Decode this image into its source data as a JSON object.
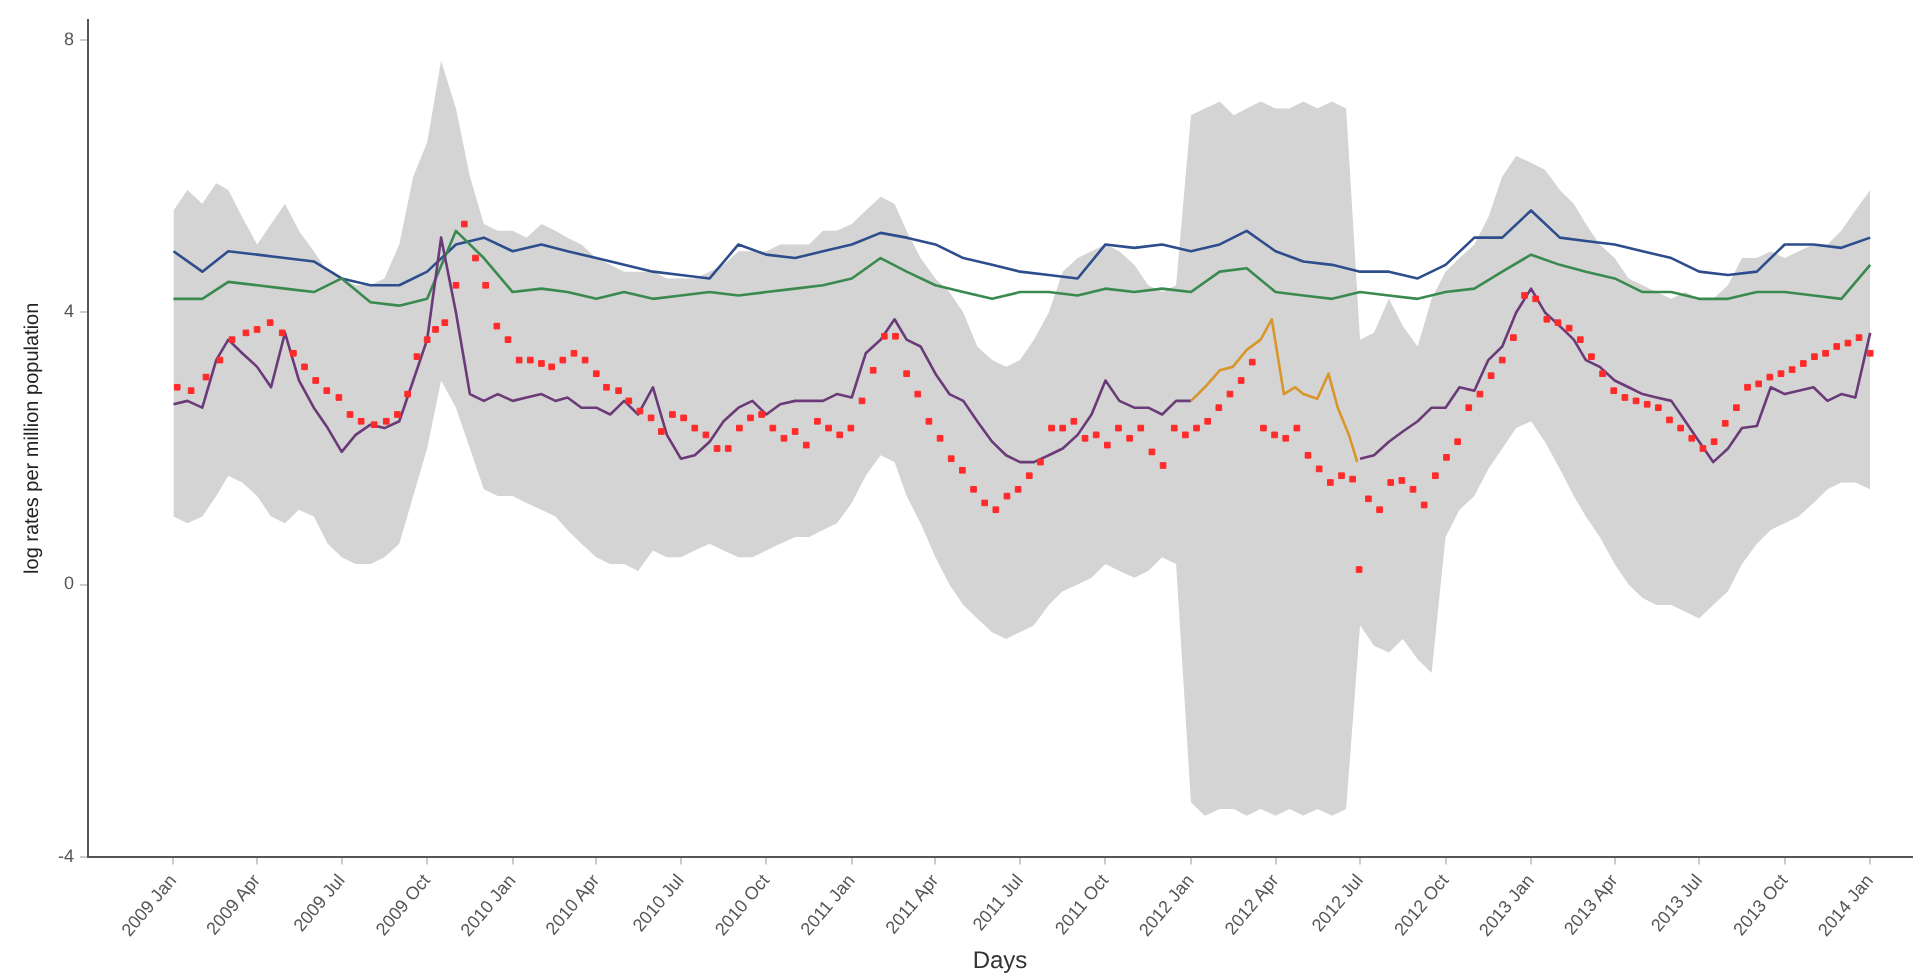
{
  "chart_data": {
    "type": "line",
    "xlabel": "Days",
    "ylabel": "log rates per million population",
    "xlim": [
      "2008-10-01",
      "2014-02-15"
    ],
    "ylim": [
      -4,
      8.3
    ],
    "xticks": [
      {
        "value": "2009-01",
        "label": "2009 Jan"
      },
      {
        "value": "2009-04",
        "label": "2009 Apr"
      },
      {
        "value": "2009-07",
        "label": "2009 Jul"
      },
      {
        "value": "2009-10",
        "label": "2009 Oct"
      },
      {
        "value": "2010-01",
        "label": "2010 Jan"
      },
      {
        "value": "2010-04",
        "label": "2010 Apr"
      },
      {
        "value": "2010-07",
        "label": "2010 Jul"
      },
      {
        "value": "2010-10",
        "label": "2010 Oct"
      },
      {
        "value": "2011-01",
        "label": "2011 Jan"
      },
      {
        "value": "2011-04",
        "label": "2011 Apr"
      },
      {
        "value": "2011-07",
        "label": "2011 Jul"
      },
      {
        "value": "2011-10",
        "label": "2011 Oct"
      },
      {
        "value": "2012-01",
        "label": "2012 Jan"
      },
      {
        "value": "2012-04",
        "label": "2012 Apr"
      },
      {
        "value": "2012-07",
        "label": "2012 Jul"
      },
      {
        "value": "2012-10",
        "label": "2012 Oct"
      },
      {
        "value": "2013-01",
        "label": "2013 Jan"
      },
      {
        "value": "2013-04",
        "label": "2013 Apr"
      },
      {
        "value": "2013-07",
        "label": "2013 Jul"
      },
      {
        "value": "2013-10",
        "label": "2013 Oct"
      },
      {
        "value": "2014-01",
        "label": "2014 Jan"
      }
    ],
    "yticks": [
      -4,
      0,
      4,
      8
    ],
    "grid": false,
    "x": [
      "2009-01",
      "2009-02",
      "2009-03",
      "2009-04",
      "2009-05",
      "2009-06",
      "2009-07",
      "2009-08",
      "2009-09",
      "2009-10",
      "2009-11",
      "2009-12",
      "2010-01",
      "2010-02",
      "2010-03",
      "2010-04",
      "2010-05",
      "2010-06",
      "2010-07",
      "2010-08",
      "2010-09",
      "2010-10",
      "2010-11",
      "2010-12",
      "2011-01",
      "2011-02",
      "2011-03",
      "2011-04",
      "2011-05",
      "2011-06",
      "2011-07",
      "2011-08",
      "2011-09",
      "2011-10",
      "2011-11",
      "2011-12",
      "2012-01",
      "2012-02",
      "2012-03",
      "2012-04",
      "2012-05",
      "2012-06",
      "2012-07",
      "2012-08",
      "2012-09",
      "2012-10",
      "2012-11",
      "2012-12",
      "2013-01",
      "2013-02",
      "2013-03",
      "2013-04",
      "2013-05",
      "2013-06",
      "2013-07",
      "2013-08",
      "2013-09",
      "2013-10",
      "2013-11",
      "2013-12",
      "2014-01"
    ],
    "series": [
      {
        "color": "#2e4d8c",
        "values": [
          4.9,
          4.6,
          4.9,
          4.85,
          4.8,
          4.75,
          4.5,
          4.4,
          4.4,
          4.6,
          5.0,
          5.1,
          4.9,
          5.0,
          4.9,
          4.8,
          4.7,
          4.6,
          4.55,
          4.5,
          5.0,
          4.85,
          4.8,
          4.9,
          5.0,
          5.17,
          5.1,
          5.0,
          4.8,
          4.7,
          4.6,
          4.55,
          4.5,
          5.0,
          4.95,
          5.0,
          4.9,
          5.0,
          5.2,
          4.9,
          4.75,
          4.7,
          4.6,
          4.6,
          4.5,
          4.7,
          5.1,
          5.1,
          5.5,
          5.1,
          5.05,
          5.0,
          4.9,
          4.8,
          4.6,
          4.55,
          4.6,
          5.0,
          5.0,
          4.95,
          5.1
        ]
      },
      {
        "color": "#3a8a50",
        "values": [
          4.2,
          4.2,
          4.45,
          4.4,
          4.35,
          4.3,
          4.5,
          4.15,
          4.1,
          4.2,
          5.2,
          4.8,
          4.3,
          4.35,
          4.3,
          4.2,
          4.3,
          4.2,
          4.25,
          4.3,
          4.25,
          4.3,
          4.35,
          4.4,
          4.5,
          4.8,
          4.6,
          4.4,
          4.3,
          4.2,
          4.3,
          4.3,
          4.25,
          4.35,
          4.3,
          4.35,
          4.3,
          4.6,
          4.65,
          4.3,
          4.25,
          4.2,
          4.3,
          4.25,
          4.2,
          4.3,
          4.35,
          4.6,
          4.85,
          4.7,
          4.6,
          4.5,
          4.3,
          4.3,
          4.2,
          4.2,
          4.3,
          4.3,
          4.25,
          4.2,
          4.7
        ]
      },
      {
        "color": "#6b3a78",
        "x": [
          "2009-01-01",
          "2009-01-16",
          "2009-02-01",
          "2009-02-16",
          "2009-03-01",
          "2009-03-16",
          "2009-04-01",
          "2009-04-16",
          "2009-05-01",
          "2009-05-16",
          "2009-06-01",
          "2009-06-16",
          "2009-07-01",
          "2009-07-16",
          "2009-08-01",
          "2009-08-16",
          "2009-09-01",
          "2009-09-16",
          "2009-10-01",
          "2009-10-16",
          "2009-11-01",
          "2009-11-16",
          "2009-12-01",
          "2009-12-16",
          "2010-01-01",
          "2010-01-16",
          "2010-02-01",
          "2010-02-16",
          "2010-03-01",
          "2010-03-16",
          "2010-04-01",
          "2010-04-16",
          "2010-05-01",
          "2010-05-16",
          "2010-06-01",
          "2010-06-16",
          "2010-07-01",
          "2010-07-16",
          "2010-08-01",
          "2010-08-16",
          "2010-09-01",
          "2010-09-16",
          "2010-10-01",
          "2010-10-16",
          "2010-11-01",
          "2010-11-16",
          "2010-12-01",
          "2010-12-16",
          "2011-01-01",
          "2011-01-16",
          "2011-02-01",
          "2011-02-16",
          "2011-03-01",
          "2011-03-16",
          "2011-04-01",
          "2011-04-16",
          "2011-05-01",
          "2011-05-16",
          "2011-06-01",
          "2011-06-16",
          "2011-07-01",
          "2011-07-16",
          "2011-08-01",
          "2011-08-16",
          "2011-09-01",
          "2011-09-16",
          "2011-10-01",
          "2011-10-16",
          "2011-11-01",
          "2011-11-16",
          "2011-12-01",
          "2011-12-16",
          "2012-01-01",
          "2012-01-16",
          "2012-02-01",
          "2012-02-16",
          "2012-03-01",
          "2012-03-16",
          "2012-04-01",
          "2012-04-16",
          "2012-05-01",
          "2012-05-16",
          "2012-06-01",
          "2012-06-16",
          "2012-07-01",
          "2012-07-16",
          "2012-08-01",
          "2012-08-16",
          "2012-09-01",
          "2012-09-16",
          "2012-10-01",
          "2012-10-16",
          "2012-11-01",
          "2012-11-16",
          "2012-12-01",
          "2012-12-16",
          "2013-01-01",
          "2013-01-16",
          "2013-02-01",
          "2013-02-16",
          "2013-03-01",
          "2013-03-16",
          "2013-04-01",
          "2013-04-16",
          "2013-05-01",
          "2013-05-16",
          "2013-06-01",
          "2013-06-16",
          "2013-07-01",
          "2013-07-16",
          "2013-08-01",
          "2013-08-16",
          "2013-09-01",
          "2013-09-16",
          "2013-10-01",
          "2013-10-16",
          "2013-11-01",
          "2013-11-16",
          "2013-12-01",
          "2013-12-16",
          "2014-01-01"
        ],
        "values": [
          2.65,
          2.7,
          2.6,
          3.3,
          3.6,
          3.4,
          3.2,
          2.9,
          3.7,
          3.0,
          2.6,
          2.3,
          1.95,
          2.2,
          2.35,
          2.3,
          2.4,
          3.0,
          3.6,
          5.1,
          4.0,
          2.8,
          2.7,
          2.8,
          2.7,
          2.75,
          2.8,
          2.7,
          2.75,
          2.6,
          2.6,
          2.5,
          2.7,
          2.5,
          2.9,
          2.2,
          1.85,
          1.9,
          2.1,
          2.4,
          2.6,
          2.7,
          2.5,
          2.65,
          2.7,
          2.7,
          2.7,
          2.8,
          2.75,
          3.4,
          3.6,
          3.9,
          3.6,
          3.5,
          3.1,
          2.8,
          2.7,
          2.4,
          2.1,
          1.9,
          1.8,
          1.8,
          1.9,
          2.0,
          2.2,
          2.5,
          3.0,
          2.7,
          2.6,
          2.6,
          2.5,
          2.7,
          2.7,
          null,
          null,
          null,
          null,
          null,
          null,
          null,
          null,
          null,
          null,
          null,
          1.85,
          1.9,
          2.1,
          2.25,
          2.4,
          2.6,
          2.6,
          2.9,
          2.85,
          3.3,
          3.5,
          4.0,
          4.35,
          4.0,
          3.8,
          3.6,
          3.3,
          3.2,
          3.0,
          2.9,
          2.8,
          2.75,
          2.7,
          2.4,
          2.1,
          1.8,
          2.0,
          2.3,
          2.33,
          2.9,
          2.8,
          2.85,
          2.9,
          2.7,
          2.8,
          2.75,
          3.7
        ],
        "upper": [
          5.5,
          5.8,
          5.6,
          5.9,
          5.8,
          5.4,
          5.0,
          5.3,
          5.6,
          5.2,
          4.9,
          4.6,
          4.5,
          4.4,
          4.4,
          4.5,
          5.0,
          6.0,
          6.5,
          7.7,
          7.0,
          6.0,
          5.3,
          5.2,
          5.2,
          5.1,
          5.3,
          5.2,
          5.1,
          5.0,
          4.8,
          4.7,
          4.6,
          4.6,
          4.6,
          4.5,
          4.5,
          4.5,
          4.6,
          4.7,
          4.9,
          4.9,
          4.9,
          5.0,
          5.0,
          5.0,
          5.2,
          5.2,
          5.3,
          5.5,
          5.7,
          5.6,
          5.2,
          4.8,
          4.5,
          4.3,
          4.0,
          3.5,
          3.3,
          3.2,
          3.3,
          3.6,
          4.0,
          4.6,
          4.8,
          4.9,
          5.0,
          4.9,
          4.7,
          4.4,
          4.3,
          4.4,
          6.9,
          7.0,
          7.1,
          6.9,
          7.0,
          7.1,
          7.0,
          7.0,
          7.1,
          7.0,
          7.1,
          7.0,
          3.6,
          3.7,
          4.2,
          3.8,
          3.5,
          4.2,
          4.6,
          4.8,
          5.0,
          5.4,
          6.0,
          6.3,
          6.2,
          6.1,
          5.8,
          5.6,
          5.3,
          5.0,
          4.8,
          4.5,
          4.4,
          4.3,
          4.2,
          4.3,
          4.2,
          4.2,
          4.4,
          4.8,
          4.8,
          4.9,
          4.8,
          4.9,
          5.0,
          5.0,
          5.2,
          5.5,
          5.8
        ],
        "lower": [
          1.0,
          0.9,
          1.0,
          1.3,
          1.6,
          1.5,
          1.3,
          1.0,
          0.9,
          1.1,
          1.0,
          0.6,
          0.4,
          0.3,
          0.3,
          0.4,
          0.6,
          1.3,
          2.0,
          3.0,
          2.6,
          2.0,
          1.4,
          1.3,
          1.3,
          1.2,
          1.1,
          1.0,
          0.8,
          0.6,
          0.4,
          0.3,
          0.3,
          0.2,
          0.5,
          0.4,
          0.4,
          0.5,
          0.6,
          0.5,
          0.4,
          0.4,
          0.5,
          0.6,
          0.7,
          0.7,
          0.8,
          0.9,
          1.2,
          1.6,
          1.9,
          1.8,
          1.3,
          0.9,
          0.4,
          0.0,
          -0.3,
          -0.5,
          -0.7,
          -0.8,
          -0.7,
          -0.6,
          -0.3,
          -0.1,
          0.0,
          0.1,
          0.3,
          0.2,
          0.1,
          0.2,
          0.4,
          0.3,
          -3.2,
          -3.4,
          -3.3,
          -3.3,
          -3.4,
          -3.3,
          -3.4,
          -3.3,
          -3.4,
          -3.3,
          -3.4,
          -3.3,
          -0.6,
          -0.9,
          -1.0,
          -0.8,
          -1.1,
          -1.3,
          0.7,
          1.1,
          1.3,
          1.7,
          2.0,
          2.3,
          2.4,
          2.1,
          1.7,
          1.3,
          1.0,
          0.7,
          0.3,
          0.0,
          -0.2,
          -0.3,
          -0.3,
          -0.4,
          -0.5,
          -0.3,
          -0.1,
          0.3,
          0.6,
          0.8,
          0.9,
          1.0,
          1.2,
          1.4,
          1.5,
          1.5,
          1.4
        ]
      },
      {
        "color": "#d9962a",
        "x": [
          "2012-01-01",
          "2012-01-16",
          "2012-02-01",
          "2012-02-15",
          "2012-03-01",
          "2012-03-16",
          "2012-03-28",
          "2012-04-10",
          "2012-04-22",
          "2012-05-01",
          "2012-05-16",
          "2012-05-28",
          "2012-06-07",
          "2012-06-19",
          "2012-06-28"
        ],
        "values": [
          2.7,
          2.9,
          3.15,
          3.2,
          3.45,
          3.6,
          3.9,
          2.8,
          2.9,
          2.8,
          2.73,
          3.1,
          2.6,
          2.2,
          1.8
        ]
      },
      {
        "type": "scatter",
        "marker": "square",
        "color": "#ff2a2a",
        "x": [
          "2009-01-05",
          "2009-01-20",
          "2009-02-05",
          "2009-02-20",
          "2009-03-05",
          "2009-03-20",
          "2009-04-01",
          "2009-04-15",
          "2009-04-28",
          "2009-05-10",
          "2009-05-22",
          "2009-06-03",
          "2009-06-15",
          "2009-06-28",
          "2009-07-10",
          "2009-07-22",
          "2009-08-05",
          "2009-08-18",
          "2009-08-30",
          "2009-09-10",
          "2009-09-20",
          "2009-10-01",
          "2009-10-10",
          "2009-10-20",
          "2009-11-01",
          "2009-11-10",
          "2009-11-22",
          "2009-12-03",
          "2009-12-15",
          "2009-12-27",
          "2010-01-08",
          "2010-01-20",
          "2010-02-01",
          "2010-02-12",
          "2010-02-24",
          "2010-03-08",
          "2010-03-20",
          "2010-04-01",
          "2010-04-12",
          "2010-04-25",
          "2010-05-06",
          "2010-05-18",
          "2010-05-30",
          "2010-06-10",
          "2010-06-22",
          "2010-07-04",
          "2010-07-16",
          "2010-07-28",
          "2010-08-09",
          "2010-08-21",
          "2010-09-02",
          "2010-09-14",
          "2010-09-26",
          "2010-10-08",
          "2010-10-20",
          "2010-11-01",
          "2010-11-13",
          "2010-11-25",
          "2010-12-07",
          "2010-12-19",
          "2010-12-31",
          "2011-01-12",
          "2011-01-24",
          "2011-02-05",
          "2011-02-17",
          "2011-03-01",
          "2011-03-13",
          "2011-03-25",
          "2011-04-06",
          "2011-04-18",
          "2011-04-30",
          "2011-05-12",
          "2011-05-24",
          "2011-06-05",
          "2011-06-17",
          "2011-06-29",
          "2011-07-11",
          "2011-07-23",
          "2011-08-04",
          "2011-08-16",
          "2011-08-28",
          "2011-09-09",
          "2011-09-21",
          "2011-10-03",
          "2011-10-15",
          "2011-10-27",
          "2011-11-08",
          "2011-11-20",
          "2011-12-02",
          "2011-12-14",
          "2011-12-26",
          "2012-01-07",
          "2012-01-19",
          "2012-01-31",
          "2012-02-12",
          "2012-02-24",
          "2012-03-07",
          "2012-03-19",
          "2012-03-31",
          "2012-04-12",
          "2012-04-24",
          "2012-05-06",
          "2012-05-18",
          "2012-05-30",
          "2012-06-11",
          "2012-06-23",
          "2012-06-30",
          "2012-07-10",
          "2012-07-22",
          "2012-08-03",
          "2012-08-15",
          "2012-08-27",
          "2012-09-08",
          "2012-09-20",
          "2012-10-02",
          "2012-10-14",
          "2012-10-26",
          "2012-11-07",
          "2012-11-19",
          "2012-12-01",
          "2012-12-13",
          "2012-12-25",
          "2013-01-06",
          "2013-01-18",
          "2013-01-30",
          "2013-02-11",
          "2013-02-23",
          "2013-03-07",
          "2013-03-19",
          "2013-03-31",
          "2013-04-12",
          "2013-04-24",
          "2013-05-06",
          "2013-05-18",
          "2013-05-30",
          "2013-06-11",
          "2013-06-23",
          "2013-07-05",
          "2013-07-17",
          "2013-07-29",
          "2013-08-10",
          "2013-08-22",
          "2013-09-03",
          "2013-09-15",
          "2013-09-27",
          "2013-10-09",
          "2013-10-21",
          "2013-11-02",
          "2013-11-14",
          "2013-11-26",
          "2013-12-08",
          "2013-12-20",
          "2014-01-01"
        ],
        "values": [
          2.9,
          2.85,
          3.05,
          3.3,
          3.6,
          3.7,
          3.75,
          3.85,
          3.7,
          3.4,
          3.2,
          3.0,
          2.85,
          2.75,
          2.5,
          2.4,
          2.35,
          2.4,
          2.5,
          2.8,
          3.35,
          3.6,
          3.75,
          3.85,
          4.4,
          5.3,
          4.8,
          4.4,
          3.8,
          3.6,
          3.3,
          3.3,
          3.25,
          3.2,
          3.3,
          3.4,
          3.3,
          3.1,
          2.9,
          2.85,
          2.7,
          2.55,
          2.45,
          2.25,
          2.5,
          2.45,
          2.3,
          2.2,
          2.0,
          2.0,
          2.3,
          2.45,
          2.5,
          2.3,
          2.15,
          2.25,
          2.05,
          2.4,
          2.3,
          2.2,
          2.3,
          2.7,
          3.15,
          3.65,
          3.65,
          3.1,
          2.8,
          2.4,
          2.15,
          1.85,
          1.68,
          1.4,
          1.2,
          1.1,
          1.3,
          1.4,
          1.6,
          1.8,
          2.3,
          2.3,
          2.4,
          2.15,
          2.2,
          2.05,
          2.3,
          2.15,
          2.3,
          1.95,
          1.75,
          2.3,
          2.2,
          2.3,
          2.4,
          2.6,
          2.8,
          3.0,
          3.27,
          2.3,
          2.2,
          2.15,
          2.3,
          1.9,
          1.7,
          1.5,
          1.6,
          1.55,
          0.22,
          1.26,
          1.1,
          1.5,
          1.53,
          1.4,
          1.17,
          1.6,
          1.87,
          2.1,
          2.6,
          2.8,
          3.07,
          3.3,
          3.63,
          4.25,
          4.2,
          3.9,
          3.85,
          3.77,
          3.6,
          3.35,
          3.1,
          2.85,
          2.75,
          2.7,
          2.65,
          2.6,
          2.42,
          2.3,
          2.15,
          2.0,
          2.1,
          2.37,
          2.6,
          2.9,
          2.95,
          3.05,
          3.1,
          3.16,
          3.25,
          3.35,
          3.4,
          3.5,
          3.55,
          3.63,
          3.4
        ]
      }
    ]
  }
}
